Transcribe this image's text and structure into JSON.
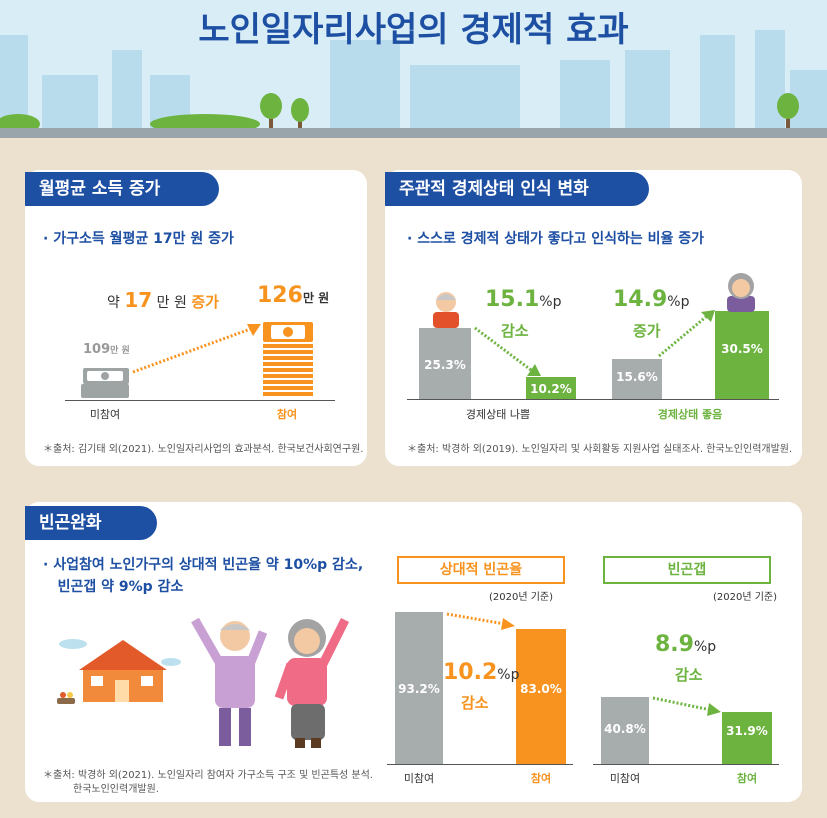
{
  "header": {
    "title": "노인일자리사업의 경제적 효과"
  },
  "income": {
    "tag": "월평균 소득 증가",
    "bullet_pre": "가구소득 월평균 ",
    "bullet_num": "17",
    "bullet_mid": "만 원 ",
    "bullet_end": "증가",
    "increase_pre": "약 ",
    "increase_num": "17",
    "increase_unit": "만 원 ",
    "increase_word": "증가",
    "before_value": "109",
    "before_unit": "만 원",
    "after_value": "126",
    "after_unit": "만 원",
    "label_before": "미참여",
    "label_after": "참여",
    "source": "＊출처: 김기태 외(2021). 노인일자리사업의 효과분석. 한국보건사회연구원."
  },
  "perception": {
    "tag": "주관적 경제상태 인식 변화",
    "bullet_pre": "스스로 경제적 상태가 좋다고 인식하는 ",
    "bullet_end": "비율 증가",
    "bad": {
      "before": "25.3%",
      "after": "10.2%",
      "change": "15.1",
      "unit": "%p",
      "word": "감소",
      "label": "경제상태 나쁨"
    },
    "good": {
      "before": "15.6%",
      "after": "30.5%",
      "change": "14.9",
      "unit": "%p",
      "word": "증가",
      "label": "경제상태 좋음"
    },
    "source": "＊출처: 박경하 외(2019). 노인일자리 및 사회활동 지원사업 실태조사. 한국노인인력개발원."
  },
  "poverty": {
    "tag": "빈곤완화",
    "line1_pre": "사업참여 노인가구의 상대적 빈곤율 약 ",
    "line1_num": "10%p",
    "line1_end": " 감소,",
    "line2_pre": "빈곤갭 약 ",
    "line2_num": "9%p",
    "line2_end": " 감소",
    "source1": "＊출처: 박경하 외(2021). 노인일자리 참여자 가구소득 구조 및 빈곤특성 분석.",
    "source2": "한국노인인력개발원.",
    "rate": {
      "title": "상대적 빈곤율",
      "base": "(2020년 기준)",
      "before": "93.2%",
      "after": "83.0%",
      "change": "10.2",
      "unit": "%p",
      "word": "감소",
      "label_before": "미참여",
      "label_after": "참여"
    },
    "gap": {
      "title": "빈곤갭",
      "base": "(2020년 기준)",
      "before": "40.8%",
      "after": "31.9%",
      "change": "8.9",
      "unit": "%p",
      "word": "감소",
      "label_before": "미참여",
      "label_after": "참여"
    }
  },
  "chart_data": [
    {
      "type": "bar",
      "categories": [
        "미참여",
        "참여"
      ],
      "values": [
        109,
        126
      ],
      "ylabel": "만 원"
    },
    {
      "type": "bar",
      "categories": [
        "경제상태 나쁨",
        "경제상태 좋음"
      ],
      "series": [
        {
          "values": [
            25.3,
            15.6
          ]
        },
        {
          "values": [
            10.2,
            30.5
          ]
        }
      ]
    },
    {
      "type": "bar",
      "title": "상대적 빈곤율",
      "categories": [
        "미참여",
        "참여"
      ],
      "values": [
        93.2,
        83.0
      ]
    },
    {
      "type": "bar",
      "title": "빈곤갭",
      "categories": [
        "미참여",
        "참여"
      ],
      "values": [
        40.8,
        31.9
      ]
    }
  ],
  "colors": {
    "blue": "#1d4fa3",
    "green": "#6cb33f",
    "orange": "#f7931e",
    "gray": "#a7acad",
    "beige": "#ece0cf"
  }
}
